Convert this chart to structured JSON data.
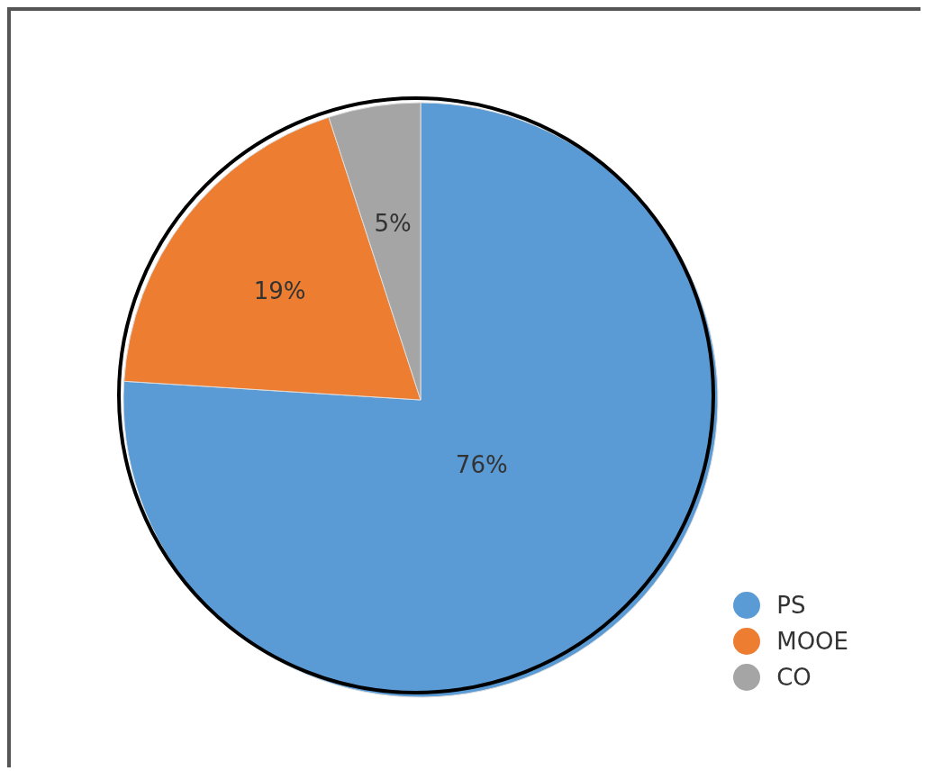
{
  "chart_data": {
    "type": "pie",
    "categories": [
      "PS",
      "MOOE",
      "CO"
    ],
    "values": [
      76,
      19,
      5
    ],
    "colors": [
      "#5b9bd5",
      "#ed7d31",
      "#a5a5a5"
    ],
    "value_labels": [
      "76%",
      "19%",
      "5%"
    ],
    "legend": "bottom right"
  }
}
